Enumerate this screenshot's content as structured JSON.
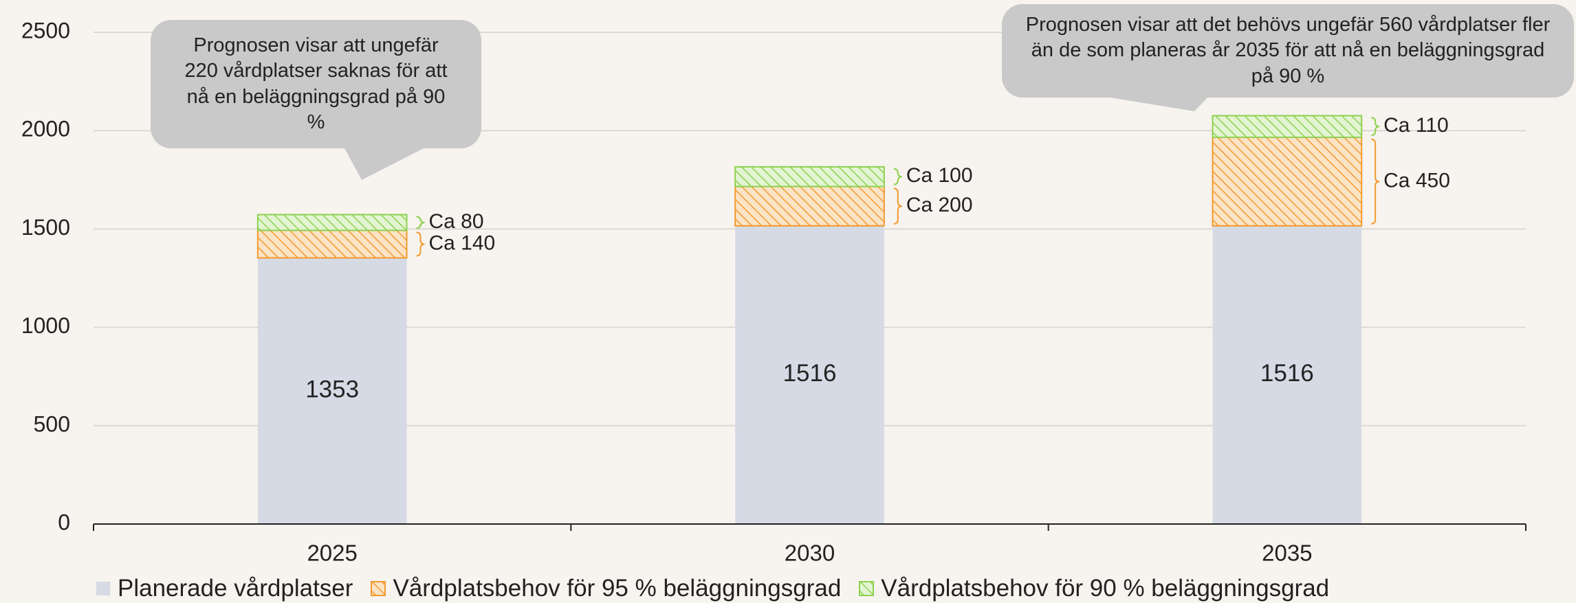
{
  "chart_data": {
    "type": "stacked_bar",
    "categories": [
      "2025",
      "2030",
      "2035"
    ],
    "series": [
      {
        "name": "Planerade vårdplatser",
        "color": "#d5dae5",
        "values": [
          1353,
          1516,
          1516
        ]
      },
      {
        "name": "Vårdplatsbehov för 95 % beläggningsgrad",
        "color": "#f39a2e",
        "pattern": "hatch",
        "values": [
          140,
          200,
          450
        ],
        "value_labels": [
          "Ca 140",
          "Ca 200",
          "Ca 450"
        ]
      },
      {
        "name": "Vårdplatsbehov för 90 % beläggningsgrad",
        "color": "#8dd14f",
        "pattern": "hatch",
        "values": [
          80,
          100,
          110
        ],
        "value_labels": [
          "Ca 80",
          "Ca 100",
          "Ca 110"
        ]
      }
    ],
    "ylim": [
      0,
      2500
    ],
    "yticks": [
      0,
      500,
      1000,
      1500,
      2000,
      2500
    ],
    "grid": true,
    "legend": "bottom",
    "annotations": [
      "Prognosen visar att ungefär 220 vårdplatser saknas för att nå en beläggningsgrad på 90 %",
      "Prognosen visar att det behövs ungefär 560 vårdplatser fler än de som planeras år 2035 för att nå en beläggningsgrad på 90 %"
    ]
  }
}
